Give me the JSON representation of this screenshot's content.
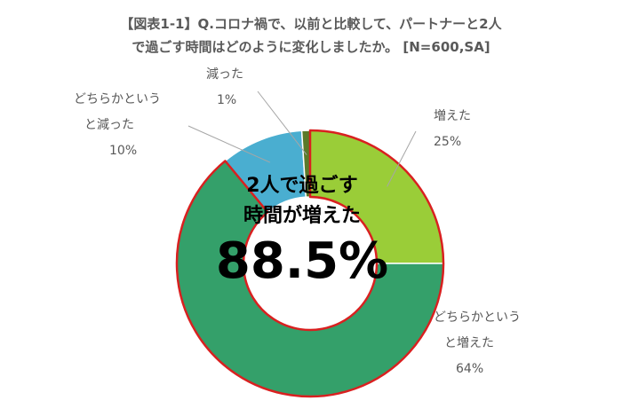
{
  "title_line1": "【図表1-1】Q.コロナ禍で、以前と比較して、パートナーと2人",
  "title_line2": "で過ごす時間はどのように変化しましたか。 [N=600,SA]",
  "center": {
    "line1": "2人で過ごす",
    "line2": "時間が増えた",
    "value": "88.5%"
  },
  "colors": {
    "increased": "#9acd38",
    "somewhat_increased": "#34a06a",
    "somewhat_decreased": "#4aaed0",
    "decreased": "#5b7a2a",
    "highlight_border": "#d92020"
  },
  "chart_data": {
    "type": "pie",
    "style": "donut",
    "slices": [
      {
        "label_lines": [
          "増えた"
        ],
        "pct_label": "25%",
        "value": 25
      },
      {
        "label_lines": [
          "どちらかという",
          "と増えた"
        ],
        "pct_label": "64%",
        "value": 64
      },
      {
        "label_lines": [
          "どちらかという",
          "と減った"
        ],
        "pct_label": "10%",
        "value": 10
      },
      {
        "label_lines": [
          "減った"
        ],
        "pct_label": "1%",
        "value": 1
      }
    ]
  }
}
